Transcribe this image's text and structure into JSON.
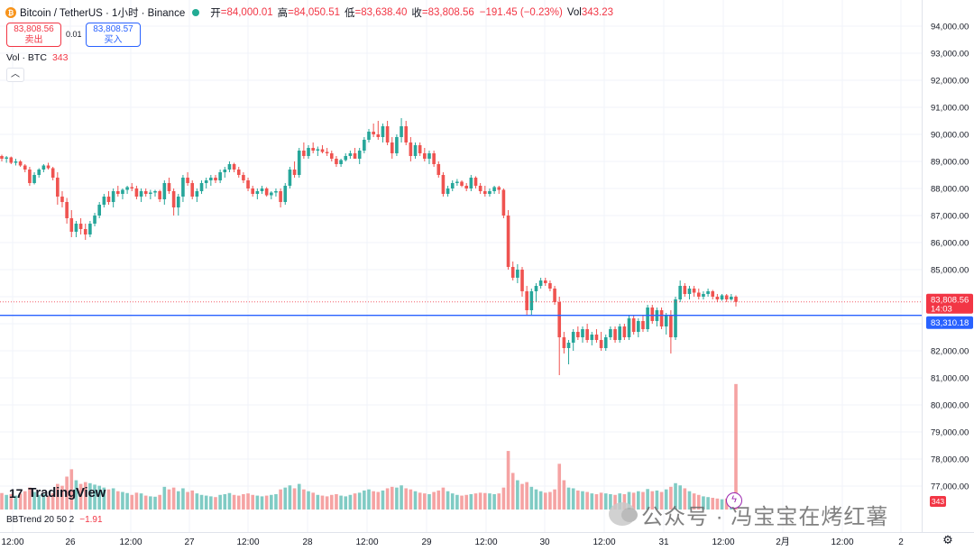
{
  "header": {
    "coin_icon": "bitcoin-icon",
    "symbol": "Bitcoin / TetherUS · 1小时 · Binance",
    "status_dot_color": "#22ab94",
    "open_label": "开",
    "open_value": "=84,000.01",
    "high_label": "高",
    "high_value": "=84,050.51",
    "low_label": "低",
    "low_value": "=83,638.40",
    "close_label": "收",
    "close_value": "=83,808.56",
    "change": "−191.45 (−0.23%)",
    "vol_label": "Vol",
    "vol_value": "343.23"
  },
  "trade": {
    "sell_price": "83,808.56",
    "sell_label": "卖出",
    "spread": "0.01",
    "buy_price": "83,808.57",
    "buy_label": "买入"
  },
  "volume_legend": {
    "label": "Vol · BTC",
    "value": "343"
  },
  "collapse_icon": "chevron-up-icon",
  "logo": {
    "icon": "tradingview-logo-icon",
    "text": "TradingView"
  },
  "indicator": {
    "label": "BBTrend 20 50 2",
    "value": "−1.91"
  },
  "watermark": {
    "text": "公众号 · 冯宝宝在烤红薯",
    "icon": "wechat-icon"
  },
  "colors": {
    "up": "#26a69a",
    "down": "#ef5350",
    "up_vol": "#80cbc4",
    "down_vol": "#f5a3a3",
    "hline": "#2962ff",
    "last_price": "#f23645"
  },
  "chart_data": {
    "type": "candlestick",
    "x_ticks": [
      "12:00",
      "26",
      "12:00",
      "27",
      "12:00",
      "28",
      "12:00",
      "29",
      "12:00",
      "30",
      "12:00",
      "31",
      "12:00",
      "2月",
      "12:00",
      "2"
    ],
    "y_ticks": [
      "94,000.00",
      "93,000.00",
      "92,000.00",
      "91,000.00",
      "90,000.00",
      "89,000.00",
      "88,000.00",
      "87,000.00",
      "86,000.00",
      "85,000.00",
      "84,000.00",
      "83,000.00",
      "82,000.00",
      "81,000.00",
      "80,000.00",
      "79,000.00",
      "78,000.00",
      "77,000.00"
    ],
    "y_tick_values": [
      94000,
      93000,
      92000,
      91000,
      90000,
      89000,
      88000,
      87000,
      86000,
      85000,
      84000,
      83000,
      82000,
      81000,
      80000,
      79000,
      78000,
      77000
    ],
    "ylim": [
      76500,
      94400
    ],
    "last_price": {
      "value": 83808.56,
      "label": "83,808.56",
      "countdown": "14:03"
    },
    "horizontal_line": {
      "value": 83310.18,
      "label": "83,310.18"
    },
    "volume_last_label": "343",
    "candles": [
      [
        89200,
        89250,
        89000,
        89100,
        45
      ],
      [
        89100,
        89200,
        88950,
        89150,
        40
      ],
      [
        89150,
        89180,
        88900,
        88950,
        42
      ],
      [
        88950,
        89100,
        88850,
        89000,
        38
      ],
      [
        89000,
        89050,
        88800,
        88850,
        44
      ],
      [
        88850,
        88900,
        88600,
        88700,
        50
      ],
      [
        88700,
        88800,
        88100,
        88200,
        60
      ],
      [
        88200,
        88600,
        88150,
        88500,
        48
      ],
      [
        88500,
        88750,
        88400,
        88700,
        40
      ],
      [
        88700,
        88900,
        88600,
        88850,
        42
      ],
      [
        88850,
        88950,
        88700,
        88750,
        38
      ],
      [
        88750,
        88800,
        88300,
        88400,
        45
      ],
      [
        88400,
        88600,
        87400,
        87700,
        70
      ],
      [
        87700,
        87900,
        87300,
        87500,
        65
      ],
      [
        87500,
        87650,
        86700,
        86900,
        90
      ],
      [
        86900,
        87200,
        86200,
        86400,
        110
      ],
      [
        86400,
        86800,
        86200,
        86700,
        80
      ],
      [
        86700,
        86900,
        86300,
        86500,
        70
      ],
      [
        86500,
        86700,
        86100,
        86300,
        75
      ],
      [
        86300,
        86800,
        86200,
        86700,
        72
      ],
      [
        86700,
        87100,
        86600,
        87000,
        68
      ],
      [
        87000,
        87500,
        86900,
        87400,
        65
      ],
      [
        87400,
        87800,
        87300,
        87700,
        60
      ],
      [
        87700,
        87900,
        87400,
        87500,
        55
      ],
      [
        87500,
        88000,
        87300,
        87900,
        58
      ],
      [
        87900,
        88100,
        87700,
        87800,
        50
      ],
      [
        87800,
        88000,
        87600,
        87950,
        48
      ],
      [
        87950,
        88100,
        87800,
        88050,
        45
      ],
      [
        88050,
        88200,
        87900,
        88000,
        40
      ],
      [
        88000,
        88100,
        87600,
        87700,
        46
      ],
      [
        87700,
        88000,
        87500,
        87900,
        44
      ],
      [
        87900,
        88000,
        87700,
        87800,
        38
      ],
      [
        87800,
        87950,
        87600,
        87850,
        36
      ],
      [
        87850,
        87950,
        87700,
        87900,
        35
      ],
      [
        87900,
        87950,
        87500,
        87600,
        40
      ],
      [
        87600,
        88300,
        87400,
        88200,
        62
      ],
      [
        88200,
        88400,
        87800,
        87900,
        55
      ],
      [
        87900,
        88000,
        87000,
        87300,
        60
      ],
      [
        87300,
        87800,
        87000,
        87700,
        50
      ],
      [
        87700,
        88500,
        87500,
        88400,
        58
      ],
      [
        88400,
        88600,
        88100,
        88200,
        48
      ],
      [
        88200,
        88300,
        87600,
        87700,
        52
      ],
      [
        87700,
        88000,
        87500,
        87900,
        44
      ],
      [
        87900,
        88300,
        87800,
        88200,
        40
      ],
      [
        88200,
        88400,
        88000,
        88300,
        38
      ],
      [
        88300,
        88500,
        88100,
        88400,
        36
      ],
      [
        88400,
        88500,
        88200,
        88300,
        34
      ],
      [
        88300,
        88700,
        88200,
        88600,
        40
      ],
      [
        88600,
        88800,
        88400,
        88700,
        42
      ],
      [
        88700,
        89000,
        88600,
        88900,
        45
      ],
      [
        88900,
        88950,
        88600,
        88700,
        40
      ],
      [
        88700,
        88800,
        88400,
        88500,
        38
      ],
      [
        88500,
        88600,
        88200,
        88300,
        42
      ],
      [
        88300,
        88400,
        87900,
        88000,
        44
      ],
      [
        88000,
        88100,
        87700,
        87800,
        40
      ],
      [
        87800,
        88000,
        87600,
        87900,
        38
      ],
      [
        87900,
        88100,
        87800,
        88000,
        36
      ],
      [
        88000,
        88050,
        87700,
        87750,
        38
      ],
      [
        87750,
        87900,
        87600,
        87850,
        40
      ],
      [
        87850,
        88000,
        87700,
        87900,
        42
      ],
      [
        87900,
        88000,
        87300,
        87500,
        55
      ],
      [
        87500,
        88200,
        87400,
        88100,
        60
      ],
      [
        88100,
        88800,
        88000,
        88700,
        66
      ],
      [
        88700,
        89000,
        88400,
        88500,
        58
      ],
      [
        88500,
        89500,
        88400,
        89400,
        70
      ],
      [
        89400,
        89700,
        89100,
        89200,
        55
      ],
      [
        89200,
        89600,
        89100,
        89500,
        50
      ],
      [
        89500,
        89700,
        89300,
        89400,
        46
      ],
      [
        89400,
        89550,
        89200,
        89450,
        40
      ],
      [
        89450,
        89600,
        89300,
        89350,
        38
      ],
      [
        89350,
        89500,
        89200,
        89300,
        36
      ],
      [
        89300,
        89400,
        89000,
        89100,
        40
      ],
      [
        89100,
        89200,
        88800,
        88900,
        42
      ],
      [
        88900,
        89100,
        88800,
        89050,
        38
      ],
      [
        89050,
        89300,
        89000,
        89200,
        36
      ],
      [
        89200,
        89400,
        89100,
        89300,
        40
      ],
      [
        89300,
        89500,
        89200,
        89100,
        44
      ],
      [
        89100,
        89500,
        88900,
        89400,
        46
      ],
      [
        89400,
        89900,
        89300,
        89800,
        52
      ],
      [
        89800,
        90200,
        89700,
        90100,
        55
      ],
      [
        90100,
        90400,
        89900,
        90000,
        50
      ],
      [
        90000,
        90500,
        89800,
        89900,
        48
      ],
      [
        89900,
        90400,
        89700,
        90300,
        52
      ],
      [
        90300,
        90500,
        89600,
        89700,
        58
      ],
      [
        89700,
        89900,
        89100,
        89300,
        62
      ],
      [
        89300,
        90000,
        89200,
        89900,
        60
      ],
      [
        89900,
        90600,
        89700,
        90300,
        66
      ],
      [
        90300,
        90500,
        89600,
        89700,
        58
      ],
      [
        89700,
        89900,
        89000,
        89200,
        55
      ],
      [
        89200,
        89700,
        89100,
        89600,
        50
      ],
      [
        89600,
        89700,
        89200,
        89300,
        46
      ],
      [
        89300,
        89500,
        89000,
        89100,
        44
      ],
      [
        89100,
        89400,
        88900,
        89300,
        42
      ],
      [
        89300,
        89400,
        88800,
        88900,
        48
      ],
      [
        88900,
        89000,
        88400,
        88500,
        52
      ],
      [
        88500,
        88600,
        87700,
        87800,
        60
      ],
      [
        87800,
        88100,
        87700,
        88000,
        50
      ],
      [
        88000,
        88300,
        87900,
        88200,
        44
      ],
      [
        88200,
        88350,
        88100,
        88250,
        40
      ],
      [
        88250,
        88300,
        88050,
        88100,
        38
      ],
      [
        88100,
        88200,
        87900,
        88000,
        40
      ],
      [
        88000,
        88500,
        87900,
        88400,
        42
      ],
      [
        88400,
        88450,
        88000,
        88100,
        44
      ],
      [
        88100,
        88200,
        87800,
        87900,
        46
      ],
      [
        87900,
        88100,
        87700,
        87800,
        45
      ],
      [
        87800,
        88000,
        87700,
        87900,
        44
      ],
      [
        87900,
        88100,
        87800,
        88050,
        42
      ],
      [
        88050,
        88100,
        87800,
        87950,
        44
      ],
      [
        87950,
        88000,
        86900,
        87000,
        60
      ],
      [
        87000,
        87200,
        85000,
        85100,
        160
      ],
      [
        85100,
        85300,
        84600,
        84700,
        100
      ],
      [
        84700,
        85200,
        84500,
        85000,
        80
      ],
      [
        85000,
        85100,
        84000,
        84200,
        70
      ],
      [
        84200,
        84400,
        83300,
        83500,
        75
      ],
      [
        83500,
        84300,
        83300,
        84200,
        62
      ],
      [
        84200,
        84500,
        83800,
        84400,
        55
      ],
      [
        84400,
        84700,
        84300,
        84600,
        50
      ],
      [
        84600,
        84700,
        84400,
        84500,
        46
      ],
      [
        84500,
        84600,
        84200,
        84300,
        48
      ],
      [
        84300,
        84400,
        83700,
        83800,
        55
      ],
      [
        83800,
        84000,
        81100,
        82500,
        125
      ],
      [
        82500,
        82700,
        81900,
        82100,
        80
      ],
      [
        82100,
        82400,
        81500,
        82300,
        60
      ],
      [
        82300,
        82800,
        82000,
        82700,
        58
      ],
      [
        82700,
        82900,
        82400,
        82500,
        52
      ],
      [
        82500,
        82900,
        82300,
        82800,
        50
      ],
      [
        82800,
        83000,
        82300,
        82400,
        48
      ],
      [
        82400,
        82700,
        82200,
        82600,
        44
      ],
      [
        82600,
        82800,
        82300,
        82400,
        42
      ],
      [
        82400,
        82700,
        82000,
        82100,
        46
      ],
      [
        82100,
        82600,
        82000,
        82500,
        44
      ],
      [
        82500,
        82900,
        82400,
        82800,
        42
      ],
      [
        82800,
        82900,
        82300,
        82400,
        40
      ],
      [
        82400,
        83000,
        82300,
        82900,
        44
      ],
      [
        82900,
        83000,
        82400,
        82500,
        42
      ],
      [
        82500,
        83300,
        82400,
        83200,
        48
      ],
      [
        83200,
        83300,
        82600,
        82700,
        46
      ],
      [
        82700,
        83200,
        82500,
        83100,
        50
      ],
      [
        83100,
        83300,
        82700,
        82800,
        48
      ],
      [
        82800,
        83700,
        82700,
        83600,
        56
      ],
      [
        83600,
        83700,
        83000,
        83100,
        50
      ],
      [
        83100,
        83600,
        82900,
        83500,
        52
      ],
      [
        83500,
        83600,
        82800,
        82900,
        48
      ],
      [
        82900,
        83400,
        82600,
        83300,
        55
      ],
      [
        83300,
        83500,
        81900,
        82500,
        62
      ],
      [
        82500,
        84000,
        82400,
        83900,
        72
      ],
      [
        83900,
        84600,
        83800,
        84400,
        66
      ],
      [
        84400,
        84500,
        84000,
        84100,
        58
      ],
      [
        84100,
        84400,
        83900,
        84300,
        50
      ],
      [
        84300,
        84400,
        84000,
        84150,
        44
      ],
      [
        84150,
        84300,
        83900,
        84000,
        40
      ],
      [
        84000,
        84200,
        83900,
        84100,
        36
      ],
      [
        84100,
        84300,
        84000,
        84200,
        34
      ],
      [
        84200,
        84250,
        83900,
        84000,
        32
      ],
      [
        84000,
        84100,
        83800,
        83900,
        30
      ],
      [
        83900,
        84100,
        83850,
        84050,
        28
      ],
      [
        84050,
        84100,
        83800,
        83900,
        30
      ],
      [
        83900,
        84100,
        83850,
        84000,
        26
      ],
      [
        84000,
        84050,
        83638,
        83808,
        343
      ]
    ]
  }
}
